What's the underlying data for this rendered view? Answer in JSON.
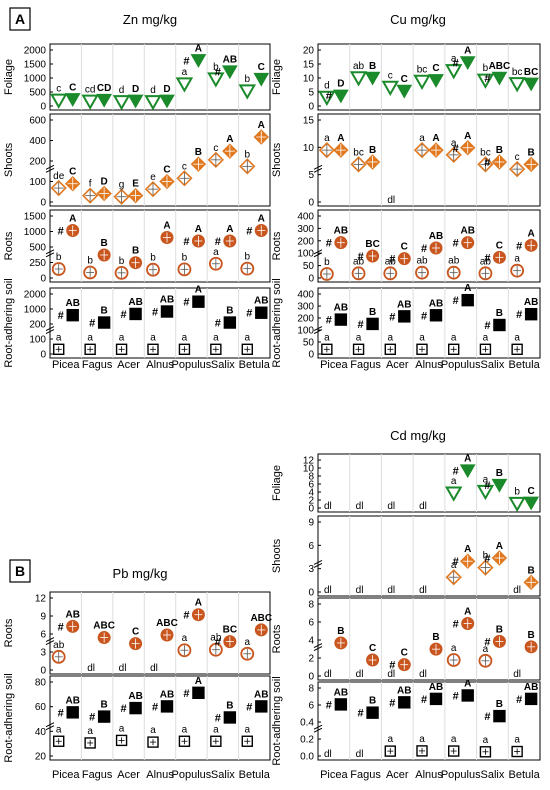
{
  "chart_data": [
    {
      "type": "scatter",
      "id": "zn",
      "panel_letter": "A",
      "title": "Zn mg/kg",
      "categories": [
        "Picea",
        "Fagus",
        "Acer",
        "Alnus",
        "Populus",
        "Salix",
        "Betula"
      ],
      "rows": [
        {
          "ylabel": "Foliage",
          "kind": "foliage",
          "dl": [],
          "yticks": [
            "0",
            "500",
            "1000",
            "1500",
            "2000"
          ],
          "letters_open": [
            "c",
            "cd",
            "d",
            "d",
            "a",
            "b",
            "b"
          ],
          "letters_filled": [
            "C",
            "CD",
            "D",
            "D",
            "A",
            "AB",
            "C"
          ],
          "hash": [
            false,
            false,
            false,
            false,
            true,
            true,
            false
          ],
          "open": [
            150,
            110,
            90,
            90,
            800,
            1000,
            520
          ],
          "filled": [
            190,
            160,
            130,
            130,
            1750,
            1300,
            1000
          ],
          "ylim": [
            0,
            2000
          ]
        },
        {
          "ylabel": "Shoots",
          "kind": "shoots",
          "dl": [],
          "yticks": [
            "0",
            "100",
            "200",
            "400",
            "600"
          ],
          "letters_open": [
            "de",
            "f",
            "g",
            "e",
            "c",
            "c",
            "b"
          ],
          "letters_filled": [
            "C",
            "D",
            "E",
            "C",
            "B",
            "A",
            "A"
          ],
          "hash": [
            false,
            false,
            false,
            false,
            false,
            false,
            false
          ],
          "open": [
            110,
            40,
            30,
            100,
            200,
            370,
            310
          ],
          "filled": [
            150,
            60,
            40,
            170,
            330,
            450,
            580
          ],
          "ylim": [
            0,
            700
          ]
        },
        {
          "ylabel": "Roots",
          "kind": "roots",
          "dl": [],
          "yticks": [
            "0",
            "250",
            "500",
            "1000",
            "1500"
          ],
          "letters_open": [
            "b",
            "b",
            "b",
            "b",
            "b",
            "a",
            "b"
          ],
          "letters_filled": [
            "A",
            "B",
            "B",
            "A",
            "A",
            "A",
            "A"
          ],
          "hash": [
            true,
            false,
            false,
            false,
            true,
            true,
            true
          ],
          "open": [
            200,
            100,
            90,
            180,
            190,
            350,
            210
          ],
          "filled": [
            1300,
            600,
            380,
            1100,
            1000,
            1000,
            1300
          ],
          "ylim": [
            0,
            1600
          ]
        },
        {
          "ylabel": "Root-adhering soil",
          "kind": "soil",
          "dl": [],
          "yticks": [
            "0",
            "100",
            "200",
            "1000",
            "2000"
          ],
          "letters_open": [
            "a",
            "a",
            "a",
            "a",
            "a",
            "a",
            "a"
          ],
          "letters_filled": [
            "AB",
            "B",
            "AB",
            "AB",
            "A",
            "B",
            "AB"
          ],
          "hash": [
            true,
            true,
            true,
            true,
            true,
            true,
            true
          ],
          "open": [
            110,
            110,
            110,
            110,
            110,
            110,
            110
          ],
          "filled": [
            1500,
            1200,
            1550,
            1650,
            2050,
            1200,
            1600
          ],
          "ylim": [
            0,
            2200
          ]
        }
      ]
    },
    {
      "type": "scatter",
      "id": "cu",
      "title": "Cu mg/kg",
      "categories": [
        "Picea",
        "Fagus",
        "Acer",
        "Alnus",
        "Populus",
        "Salix",
        "Betula"
      ],
      "rows": [
        {
          "ylabel": "Foliage",
          "kind": "foliage",
          "dl": [],
          "yticks": [
            "0",
            "5",
            "10",
            "15",
            "20"
          ],
          "letters_open": [
            "d",
            "ab",
            "c",
            "bc",
            "a",
            "b",
            "bc"
          ],
          "letters_filled": [
            "D",
            "B",
            "C",
            "C",
            "A",
            "ABC",
            "BC"
          ],
          "hash": [
            true,
            false,
            false,
            false,
            true,
            true,
            false
          ],
          "open": [
            2.8,
            11,
            7,
            9.5,
            14,
            10,
            8.5
          ],
          "filled": [
            3.5,
            11,
            5.5,
            10,
            17.5,
            11,
            8.5
          ],
          "ylim": [
            0,
            21
          ]
        },
        {
          "ylabel": "Shoots",
          "kind": "shoots",
          "dl": [
            "Acer"
          ],
          "yticks": [
            "0",
            "5",
            "10",
            "15"
          ],
          "letters_open": [
            "a",
            "bc",
            "",
            "a",
            "a",
            "bc",
            "c"
          ],
          "letters_filled": [
            "A",
            "B",
            "",
            "A",
            "A",
            "B",
            "B"
          ],
          "hash": [
            false,
            false,
            false,
            false,
            true,
            true,
            false
          ],
          "open": [
            10.5,
            7.5,
            null,
            10.5,
            9.5,
            7.5,
            6.5
          ],
          "filled": [
            10.5,
            8,
            null,
            10.5,
            11,
            8,
            7.5
          ],
          "ylim": [
            0,
            16
          ]
        },
        {
          "ylabel": "Roots",
          "kind": "roots",
          "dl": [],
          "yticks": [
            "0",
            "50",
            "100",
            "200",
            "300",
            "400"
          ],
          "letters_open": [
            "b",
            "ab",
            "ab",
            "ab",
            "ab",
            "ab",
            "a"
          ],
          "letters_filled": [
            "AB",
            "BC",
            "C",
            "AB",
            "AB",
            "C",
            "A"
          ],
          "hash": [
            true,
            true,
            true,
            true,
            true,
            true,
            true
          ],
          "open": [
            15,
            20,
            20,
            25,
            25,
            20,
            40
          ],
          "filled": [
            250,
            150,
            130,
            210,
            250,
            140,
            230
          ],
          "ylim": [
            0,
            420
          ]
        },
        {
          "ylabel": "Root-adhering soil",
          "kind": "soil",
          "dl": [],
          "yticks": [
            "0",
            "50",
            "100",
            "200",
            "300",
            "400"
          ],
          "letters_open": [
            "a",
            "a",
            "a",
            "a",
            "a",
            "a",
            "a"
          ],
          "letters_filled": [
            "AB",
            "B",
            "AB",
            "AB",
            "A",
            "B",
            "AB"
          ],
          "hash": [
            true,
            true,
            true,
            true,
            true,
            true,
            true
          ],
          "open": [
            25,
            25,
            25,
            25,
            25,
            25,
            25
          ],
          "filled": [
            300,
            260,
            330,
            340,
            480,
            250,
            350
          ],
          "ylim": [
            0,
            500
          ]
        }
      ]
    },
    {
      "type": "scatter",
      "id": "cd",
      "title": "Cd mg/kg",
      "categories": [
        "Picea",
        "Fagus",
        "Acer",
        "Alnus",
        "Populus",
        "Salix",
        "Betula"
      ],
      "rows": [
        {
          "ylabel": "Foliage",
          "kind": "foliage",
          "dl": [
            "Picea",
            "Fagus",
            "Acer",
            "Alnus"
          ],
          "yticks": [
            "0",
            "2",
            "4",
            "6",
            "8",
            "10",
            "12"
          ],
          "letters_open": [
            "",
            "",
            "",
            "",
            "a",
            "a",
            "b"
          ],
          "letters_filled": [
            "",
            "",
            "",
            "",
            "A",
            "B",
            "C"
          ],
          "hash": [
            false,
            false,
            false,
            false,
            true,
            true,
            false
          ],
          "open": [
            null,
            null,
            null,
            null,
            4.0,
            4.5,
            0.8
          ],
          "filled": [
            null,
            null,
            null,
            null,
            11,
            6.5,
            1.0
          ],
          "ylim": [
            0,
            13
          ]
        },
        {
          "ylabel": "Shoots",
          "kind": "shoots",
          "dl": [
            "Picea",
            "Fagus",
            "Acer",
            "Alnus"
          ],
          "yticks": [
            "0",
            "3",
            "6",
            "9"
          ],
          "letters_open": [
            "",
            "",
            "",
            "",
            "a",
            "b",
            "dl"
          ],
          "letters_filled": [
            "",
            "",
            "",
            "",
            "A",
            "A",
            "B"
          ],
          "hash": [
            false,
            false,
            false,
            false,
            true,
            true,
            false
          ],
          "open": [
            null,
            null,
            null,
            null,
            2.0,
            3.5,
            null
          ],
          "filled": [
            null,
            null,
            null,
            null,
            4.5,
            5.0,
            1.2
          ],
          "ylim": [
            0,
            10
          ]
        },
        {
          "ylabel": "Roots",
          "kind": "roots",
          "dl": [
            "Picea",
            "Fagus",
            "Acer",
            "Alnus"
          ],
          "yticks": [
            "0",
            "2",
            "4",
            "6",
            "8"
          ],
          "letters_open": [
            "",
            "",
            "",
            "",
            "a",
            "a",
            "dl"
          ],
          "letters_filled": [
            "B",
            "C",
            "C",
            "B",
            "A",
            "B",
            "B"
          ],
          "hash": [
            false,
            false,
            true,
            false,
            true,
            true,
            false
          ],
          "open": [
            null,
            null,
            null,
            null,
            1.8,
            1.7,
            null
          ],
          "filled": [
            4.0,
            1.8,
            1.2,
            3.2,
            6.5,
            4.2,
            3.5
          ],
          "ylim": [
            0,
            8.5
          ]
        },
        {
          "ylabel": "Root-adhering soil",
          "kind": "soil",
          "dl": [
            "Picea",
            "Fagus"
          ],
          "yticks": [
            "0.0",
            "0.2",
            "0.4",
            "6",
            "8"
          ],
          "letters_open": [
            "",
            "",
            "a",
            "a",
            "a",
            "a",
            "a"
          ],
          "letters_filled": [
            "AB",
            "B",
            "AB",
            "AB",
            "A",
            "B",
            "AB"
          ],
          "hash": [
            true,
            true,
            true,
            true,
            true,
            true,
            true
          ],
          "open": [
            null,
            null,
            0.42,
            0.45,
            0.43,
            0.32,
            0.36
          ],
          "filled": [
            7.2,
            6.0,
            7.5,
            8.0,
            8.5,
            5.5,
            8.0
          ],
          "ylim": [
            0,
            9
          ]
        }
      ]
    },
    {
      "type": "scatter",
      "id": "pb",
      "panel_letter": "B",
      "title": "Pb mg/kg",
      "categories": [
        "Picea",
        "Fagus",
        "Acer",
        "Alnus",
        "Populus",
        "Salix",
        "Betula"
      ],
      "rows": [
        {
          "ylabel": "Roots",
          "kind": "roots",
          "dl": [
            "Fagus",
            "Acer",
            "Alnus"
          ],
          "yticks": [
            "0",
            "3",
            "6",
            "9",
            "12"
          ],
          "letters_open": [
            "ab",
            "",
            "",
            "",
            "a",
            "ab",
            "a"
          ],
          "letters_filled": [
            "AB",
            "ABC",
            "C",
            "ABC",
            "A",
            "BC",
            "ABC"
          ],
          "hash": [
            true,
            false,
            false,
            false,
            true,
            true,
            false
          ],
          "open": [
            2.2,
            null,
            null,
            null,
            3.5,
            3.6,
            2.8
          ],
          "filled": [
            8.2,
            6.0,
            4.8,
            6.5,
            10.5,
            5.2,
            7.5
          ],
          "ylim": [
            0,
            13
          ]
        },
        {
          "ylabel": "Root-adhering soil",
          "kind": "soil",
          "dl": [],
          "yticks": [
            "20",
            "40",
            "60",
            "80"
          ],
          "letters_open": [
            "a",
            "a",
            "a",
            "a",
            "a",
            "a",
            "a"
          ],
          "letters_filled": [
            "AB",
            "B",
            "AB",
            "AB",
            "A",
            "B",
            "AB"
          ],
          "hash": [
            true,
            true,
            true,
            true,
            true,
            true,
            true
          ],
          "open": [
            30,
            28,
            31,
            29,
            30,
            30,
            30
          ],
          "filled": [
            64,
            59,
            69,
            71,
            87,
            58,
            71
          ],
          "ylim": [
            15,
            95
          ]
        }
      ]
    }
  ],
  "dl_label": "dl",
  "hash_mark": "#",
  "colors": {
    "foliage_fill": "#1a8a2a",
    "foliage_open_edge": "#1a8a2a",
    "wood_fill": "#e07820",
    "root_fill": "#c8561e",
    "soil_fill": "#000000"
  }
}
